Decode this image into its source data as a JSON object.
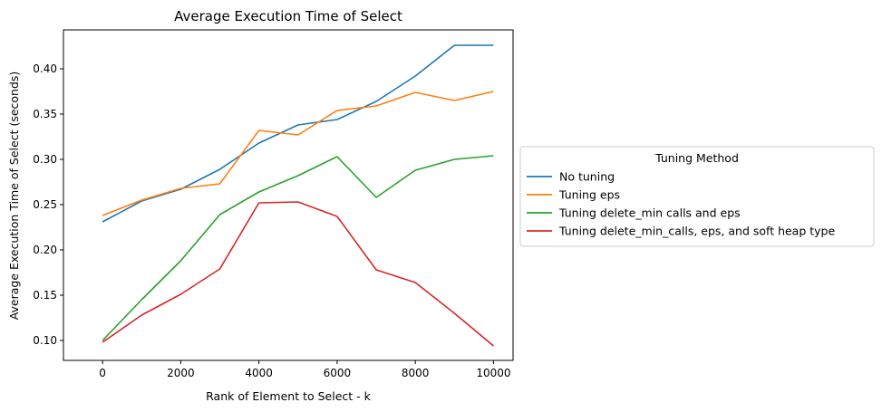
{
  "chart_data": {
    "type": "line",
    "title": "Average Execution Time of Select",
    "xlabel": "Rank of Element to Select - k",
    "ylabel": "Average Execution Time of Select (seconds)",
    "xlim": [
      -1000,
      10500
    ],
    "ylim": [
      0.078,
      0.443
    ],
    "xticks": [
      0,
      2000,
      4000,
      6000,
      8000,
      10000
    ],
    "xtick_labels": [
      "0",
      "2000",
      "4000",
      "6000",
      "8000",
      "10000"
    ],
    "yticks": [
      0.1,
      0.15,
      0.2,
      0.25,
      0.3,
      0.35,
      0.4
    ],
    "ytick_labels": [
      "0.10",
      "0.15",
      "0.20",
      "0.25",
      "0.30",
      "0.35",
      "0.40"
    ],
    "grid": false,
    "legend": {
      "title": "Tuning Method",
      "placement": "outside-right"
    },
    "x": [
      0,
      1000,
      2000,
      3000,
      4000,
      5000,
      6000,
      7000,
      8000,
      9000,
      10000
    ],
    "series": [
      {
        "name": "No tuning",
        "color": "#1f77b4",
        "values": [
          0.231,
          0.254,
          0.267,
          0.289,
          0.318,
          0.338,
          0.344,
          0.364,
          0.392,
          0.426,
          0.426
        ]
      },
      {
        "name": "Tuning eps",
        "color": "#ff7f0e",
        "values": [
          0.238,
          0.255,
          0.268,
          0.273,
          0.332,
          0.327,
          0.354,
          0.359,
          0.374,
          0.365,
          0.375
        ]
      },
      {
        "name": "Tuning delete_min calls and eps",
        "color": "#2ca02c",
        "values": [
          0.1,
          0.145,
          0.188,
          0.239,
          0.264,
          0.282,
          0.303,
          0.258,
          0.288,
          0.3,
          0.304
        ]
      },
      {
        "name": "Tuning delete_min_calls, eps, and soft heap type",
        "color": "#d62728",
        "values": [
          0.098,
          0.128,
          0.151,
          0.179,
          0.252,
          0.253,
          0.237,
          0.178,
          0.164,
          0.13,
          0.094
        ]
      }
    ]
  }
}
